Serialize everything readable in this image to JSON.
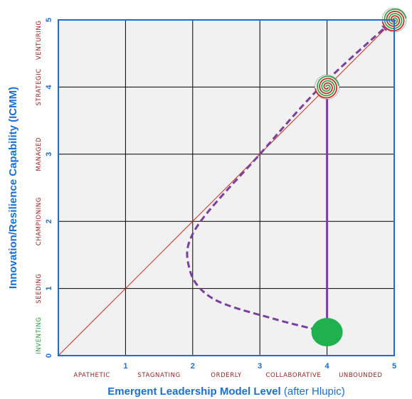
{
  "chart_data": {
    "type": "scatter",
    "xlabel": "Emergent Leadership Model Level",
    "xlabel_note": "(after Hlupic)",
    "ylabel": "Innovation/Resilience Capability (ICMM)",
    "xlim": [
      0,
      5
    ],
    "ylim": [
      0,
      5
    ],
    "grid": true,
    "x_ticks": [
      "1",
      "2",
      "3",
      "4",
      "5"
    ],
    "y_ticks": [
      "0",
      "1",
      "2",
      "3",
      "4",
      "5"
    ],
    "x_stages": [
      "APATHETIC",
      "STAGNATING",
      "ORDERLY",
      "COLLABORATIVE",
      "UNBOUNDED"
    ],
    "y_stages": [
      "INVENTING",
      "SEEDING",
      "CHAMPIONING",
      "MANAGED",
      "STRATEGIC",
      "VENTURING"
    ],
    "series": [
      {
        "kind": "reference-diagonal",
        "x": [
          0,
          5
        ],
        "y": [
          0,
          5
        ]
      },
      {
        "kind": "dashed-curve",
        "x": [
          4.0,
          3.2,
          2.3,
          1.95,
          2.05,
          3.0,
          3.9,
          4.9
        ],
        "y": [
          0.35,
          0.55,
          0.85,
          1.3,
          1.9,
          3.0,
          4.0,
          4.92
        ]
      },
      {
        "kind": "solid-arrow",
        "x": [
          4.0,
          4.0
        ],
        "y": [
          0.45,
          3.9
        ]
      }
    ],
    "markers": [
      {
        "kind": "start-dot",
        "x": 4.0,
        "y": 0.35
      },
      {
        "kind": "spiral",
        "x": 4.0,
        "y": 4.0
      },
      {
        "kind": "spiral",
        "x": 5.0,
        "y": 5.0
      }
    ],
    "colors": {
      "grid": "#000000",
      "frame": "#1a6fd4",
      "plot_bg": "#f1f1f1",
      "diagonal": "#cc3322",
      "path": "#7a3fa0",
      "dot": "#1fb14d",
      "spiral_red": "#d22a2a",
      "spiral_green": "#2ea84a",
      "x_stage_text": "#9b1b1b",
      "y_stage_red": "#9b1b1b",
      "y_stage_green": "#2c9a3c",
      "ticks": "#1a6fd4"
    }
  }
}
